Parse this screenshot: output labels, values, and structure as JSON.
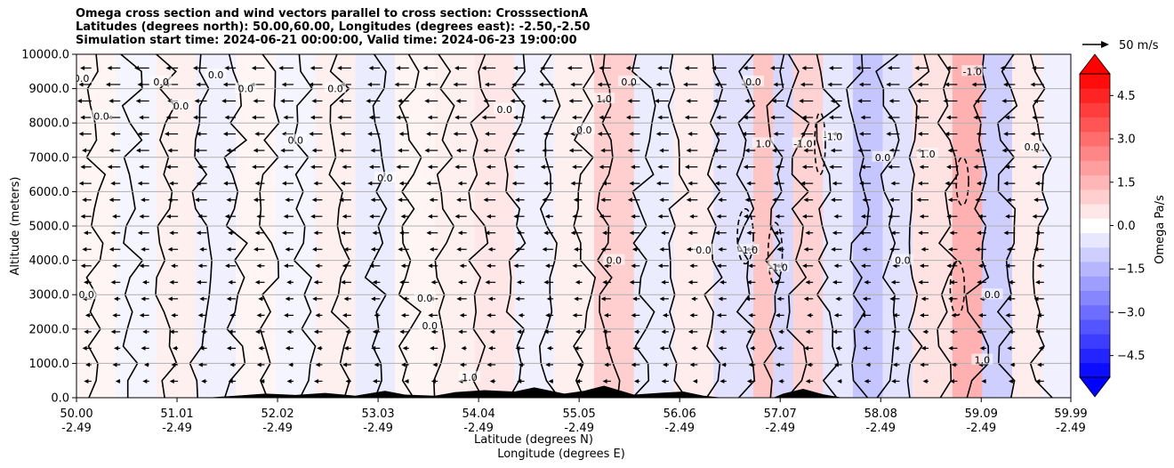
{
  "chart_data": {
    "type": "heatmap",
    "title_lines": [
      "Omega cross section and wind vectors parallel to cross section: CrosssectionA",
      "Latitudes (degrees north): 50.00,60.00, Longitudes (degrees east): -2.50,-2.50",
      "Simulation start time: 2024-06-21 00:00:00, Valid time: 2024-06-23 19:00:00"
    ],
    "ylabel": "Altitude (meters)",
    "xlabel_lines": [
      "Latitude (degrees N)",
      "Longitude (degrees E)"
    ],
    "ylim": [
      0,
      10000
    ],
    "xlim": [
      50.0,
      59.99
    ],
    "yticks": [
      "0.0",
      "1000.0",
      "2000.0",
      "3000.0",
      "4000.0",
      "5000.0",
      "6000.0",
      "7000.0",
      "8000.0",
      "9000.0",
      "10000.0"
    ],
    "xticks": [
      {
        "lat": "50.00",
        "lon": "-2.49"
      },
      {
        "lat": "51.01",
        "lon": "-2.49"
      },
      {
        "lat": "52.02",
        "lon": "-2.49"
      },
      {
        "lat": "53.03",
        "lon": "-2.49"
      },
      {
        "lat": "54.04",
        "lon": "-2.49"
      },
      {
        "lat": "55.05",
        "lon": "-2.49"
      },
      {
        "lat": "56.06",
        "lon": "-2.49"
      },
      {
        "lat": "57.07",
        "lon": "-2.49"
      },
      {
        "lat": "58.08",
        "lon": "-2.49"
      },
      {
        "lat": "59.09",
        "lon": "-2.49"
      },
      {
        "lat": "59.99",
        "lon": "-2.49"
      }
    ],
    "grid": true,
    "colorbar": {
      "label": "Omega Pa/s",
      "ticks": [
        "4.5",
        "3.0",
        "1.5",
        "0.0",
        "−1.5",
        "−3.0",
        "−4.5"
      ],
      "range": [
        -5.25,
        5.25
      ],
      "extend": "both",
      "cmap": "bwr"
    },
    "quiver_key": {
      "label": "50 m/s"
    },
    "contour_label_values": [
      "0.0",
      "1.0",
      "-1.0"
    ],
    "omega_columns": [
      {
        "lat": 50.0,
        "omega": 0.2
      },
      {
        "lat": 50.4,
        "omega": -0.2
      },
      {
        "lat": 50.8,
        "omega": 0.3
      },
      {
        "lat": 51.2,
        "omega": -0.3
      },
      {
        "lat": 51.6,
        "omega": 0.2
      },
      {
        "lat": 52.0,
        "omega": -0.2
      },
      {
        "lat": 52.4,
        "omega": 0.3
      },
      {
        "lat": 52.8,
        "omega": -0.4
      },
      {
        "lat": 53.2,
        "omega": 0.2
      },
      {
        "lat": 53.6,
        "omega": 0.3
      },
      {
        "lat": 54.0,
        "omega": 0.5
      },
      {
        "lat": 54.4,
        "omega": -0.3
      },
      {
        "lat": 54.8,
        "omega": 0.3
      },
      {
        "lat": 55.2,
        "omega": 1.0
      },
      {
        "lat": 55.6,
        "omega": -0.4
      },
      {
        "lat": 56.0,
        "omega": 0.4
      },
      {
        "lat": 56.4,
        "omega": -0.6
      },
      {
        "lat": 56.8,
        "omega": 1.2
      },
      {
        "lat": 57.0,
        "omega": -0.8
      },
      {
        "lat": 57.2,
        "omega": 0.9
      },
      {
        "lat": 57.5,
        "omega": -0.5
      },
      {
        "lat": 57.8,
        "omega": -1.2
      },
      {
        "lat": 58.1,
        "omega": -0.6
      },
      {
        "lat": 58.4,
        "omega": 0.6
      },
      {
        "lat": 58.8,
        "omega": 1.6
      },
      {
        "lat": 59.1,
        "omega": -1.0
      },
      {
        "lat": 59.4,
        "omega": 0.4
      },
      {
        "lat": 59.7,
        "omega": -0.3
      }
    ]
  }
}
